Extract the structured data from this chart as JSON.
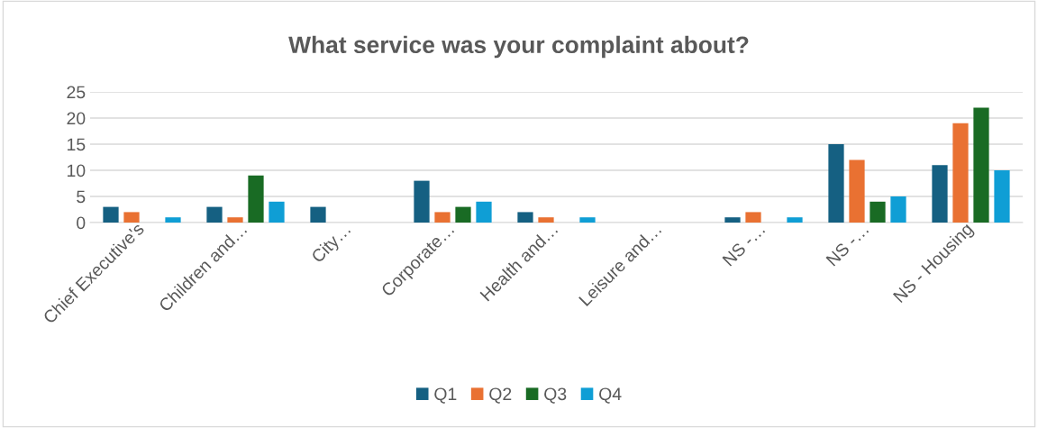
{
  "chart_data": {
    "type": "bar",
    "title": "What service was your complaint about?",
    "categories": [
      "Chief Executive's",
      "Children and…",
      "City…",
      "Corporate…",
      "Health and…",
      "Leisure and…",
      "NS -…",
      "NS -…",
      "NS - Housing"
    ],
    "series": [
      {
        "name": "Q1",
        "color": "#156082",
        "values": [
          3,
          3,
          3,
          8,
          2,
          null,
          1,
          15,
          11
        ]
      },
      {
        "name": "Q2",
        "color": "#e97132",
        "values": [
          2,
          1,
          null,
          2,
          1,
          null,
          2,
          12,
          19
        ]
      },
      {
        "name": "Q3",
        "color": "#196b24",
        "values": [
          null,
          9,
          null,
          3,
          null,
          null,
          null,
          4,
          22
        ]
      },
      {
        "name": "Q4",
        "color": "#0f9ed5",
        "values": [
          1,
          4,
          null,
          4,
          1,
          null,
          1,
          5,
          10
        ]
      }
    ],
    "ylim": [
      0,
      25
    ],
    "yticks": [
      0,
      5,
      10,
      15,
      20,
      25
    ],
    "grid": "y",
    "legend": "bottom"
  }
}
